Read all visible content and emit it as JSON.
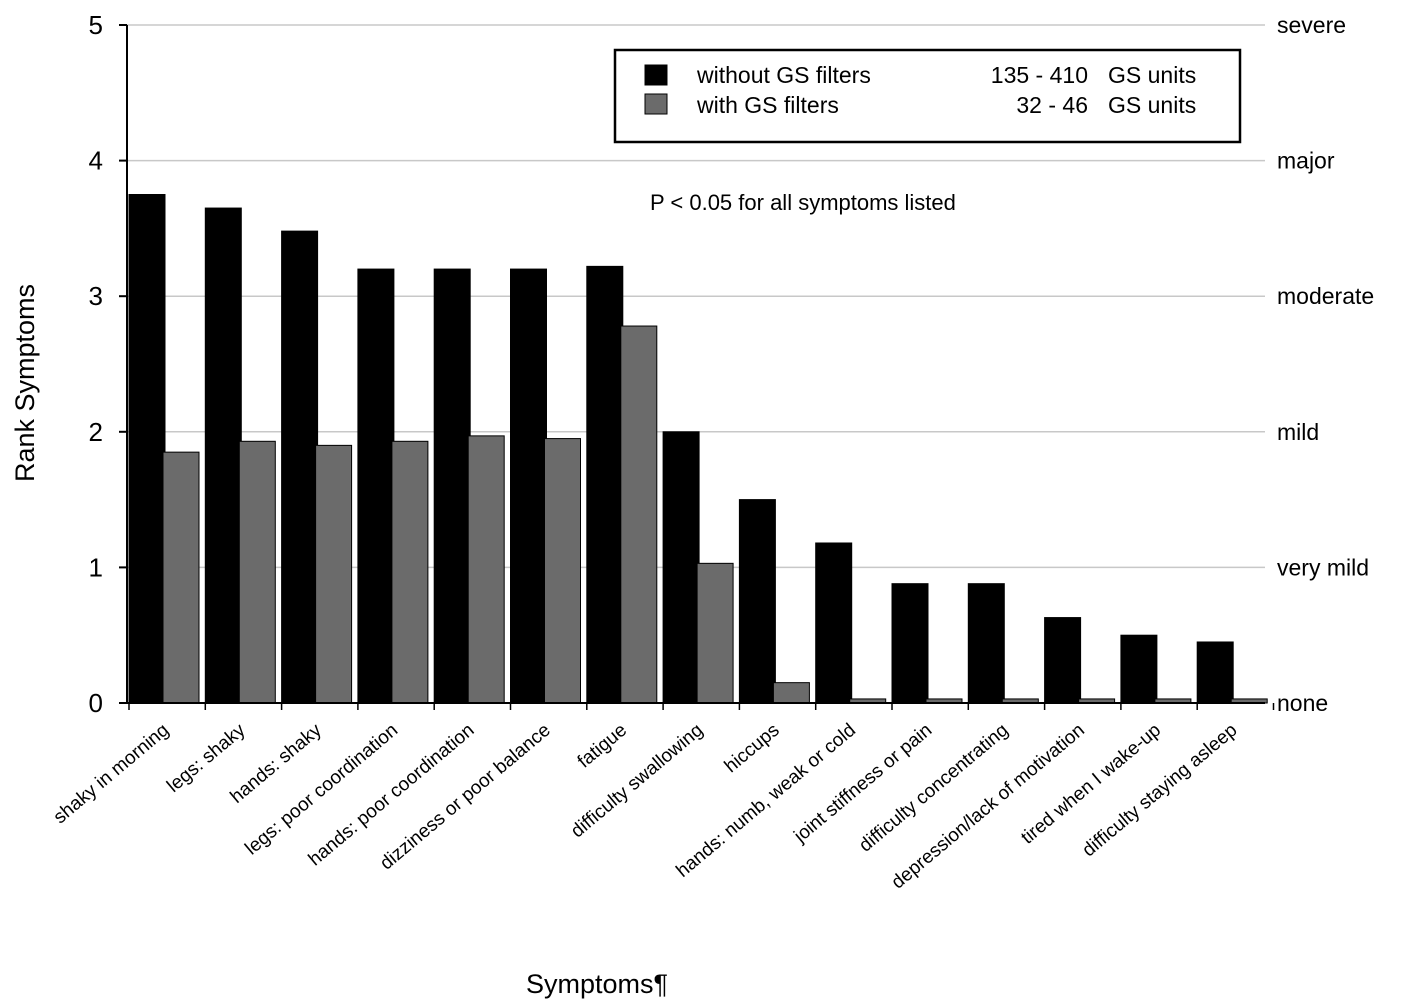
{
  "chart_data": {
    "type": "bar",
    "xlabel": "Symptoms¶",
    "ylabel": "Rank Symptoms",
    "ylim": [
      0,
      5
    ],
    "yticks": [
      "0",
      "1",
      "2",
      "3",
      "4",
      "5"
    ],
    "right_axis_labels": [
      "none",
      "very mild",
      "mild",
      "moderate",
      "major",
      "severe"
    ],
    "grid": true,
    "legend_position": "top-right",
    "annotation": "P < 0.05 for all symptoms listed",
    "categories": [
      "shaky in morning",
      "legs: shaky",
      "hands: shaky",
      "legs: poor coordination",
      "hands: poor coordination",
      "dizziness or poor balance",
      "fatigue",
      "difficulty swallowing",
      "hiccups",
      "hands: numb, weak or cold",
      "joint stiffness or pain",
      "difficulty concentrating",
      "depression/lack of motivation",
      "tired when I wake-up",
      "difficulty staying asleep"
    ],
    "series": [
      {
        "name": "without GS filters",
        "range": "135 -  410",
        "unit": "GS units",
        "color": "#000000",
        "values": [
          3.75,
          3.65,
          3.48,
          3.2,
          3.2,
          3.2,
          3.22,
          2.0,
          1.5,
          1.18,
          0.88,
          0.88,
          0.63,
          0.5,
          0.45
        ]
      },
      {
        "name": "with  GS filters",
        "range": "32 -    46",
        "unit": "GS units",
        "color": "#6b6b6b",
        "values": [
          1.85,
          1.93,
          1.9,
          1.93,
          1.97,
          1.95,
          2.78,
          1.03,
          0.15,
          0.03,
          0.03,
          0.03,
          0.03,
          0.03,
          0.03
        ]
      }
    ]
  }
}
